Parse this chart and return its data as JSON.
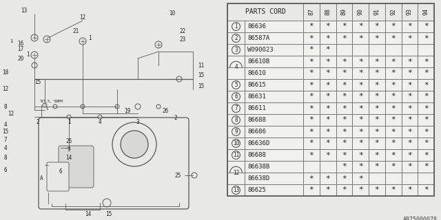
{
  "ref_code": "AB75000078",
  "table": {
    "header_col": "PARTS CORD",
    "year_cols": [
      "87",
      "88",
      "89",
      "90",
      "91",
      "92",
      "93",
      "94"
    ],
    "rows": [
      {
        "num": "1",
        "part": "86636",
        "marks": [
          1,
          1,
          1,
          1,
          1,
          1,
          1,
          1
        ],
        "span": 1
      },
      {
        "num": "2",
        "part": "86587A",
        "marks": [
          1,
          1,
          1,
          1,
          1,
          1,
          1,
          1
        ],
        "span": 1
      },
      {
        "num": "3",
        "part": "W090023",
        "marks": [
          1,
          1,
          0,
          0,
          0,
          0,
          0,
          0
        ],
        "span": 1
      },
      {
        "num": "4",
        "part": "86610B",
        "marks": [
          1,
          1,
          1,
          1,
          1,
          1,
          1,
          1
        ],
        "span": 2
      },
      {
        "num": "",
        "part": "86610",
        "marks": [
          1,
          1,
          1,
          1,
          1,
          1,
          1,
          1
        ],
        "span": 0
      },
      {
        "num": "5",
        "part": "86615",
        "marks": [
          1,
          1,
          1,
          1,
          1,
          1,
          1,
          1
        ],
        "span": 1
      },
      {
        "num": "6",
        "part": "86631",
        "marks": [
          1,
          1,
          1,
          1,
          1,
          1,
          1,
          1
        ],
        "span": 1
      },
      {
        "num": "7",
        "part": "86611",
        "marks": [
          1,
          1,
          1,
          1,
          1,
          1,
          1,
          1
        ],
        "span": 1
      },
      {
        "num": "8",
        "part": "86688",
        "marks": [
          1,
          1,
          1,
          1,
          1,
          1,
          1,
          1
        ],
        "span": 1
      },
      {
        "num": "9",
        "part": "86686",
        "marks": [
          1,
          1,
          1,
          1,
          1,
          1,
          1,
          1
        ],
        "span": 1
      },
      {
        "num": "10",
        "part": "86636D",
        "marks": [
          1,
          1,
          1,
          1,
          1,
          1,
          1,
          1
        ],
        "span": 1
      },
      {
        "num": "11",
        "part": "86688",
        "marks": [
          1,
          1,
          1,
          1,
          1,
          1,
          1,
          1
        ],
        "span": 1
      },
      {
        "num": "12",
        "part": "86638B",
        "marks": [
          0,
          0,
          1,
          1,
          1,
          1,
          1,
          1
        ],
        "span": 2
      },
      {
        "num": "",
        "part": "86638D",
        "marks": [
          1,
          1,
          1,
          1,
          0,
          0,
          0,
          0
        ],
        "span": 0
      },
      {
        "num": "13",
        "part": "86625",
        "marks": [
          1,
          1,
          1,
          1,
          1,
          1,
          1,
          1
        ],
        "span": 1
      }
    ]
  },
  "bg_color": "#e8e8e4",
  "table_bg": "#f0f0ec",
  "border_color": "#888888",
  "text_color": "#222222",
  "font_size": 6.5,
  "header_font_size": 6.5
}
